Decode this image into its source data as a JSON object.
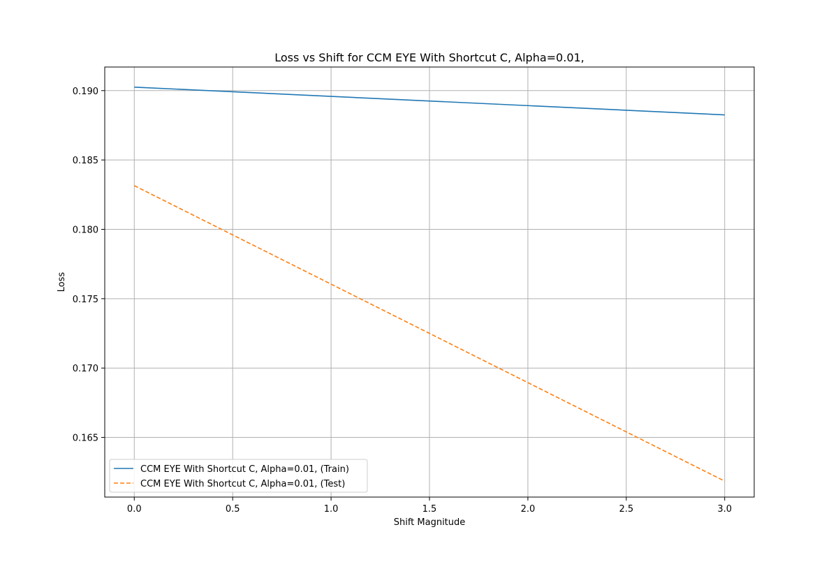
{
  "chart_data": {
    "type": "line",
    "title": "Loss vs Shift for CCM EYE With Shortcut C, Alpha=0.01,",
    "xlabel": "Shift Magnitude",
    "ylabel": "Loss",
    "xlim": [
      -0.15,
      3.15
    ],
    "ylim": [
      0.1607,
      0.1917
    ],
    "xticks": [
      0.0,
      0.5,
      1.0,
      1.5,
      2.0,
      2.5,
      3.0
    ],
    "xtick_labels": [
      "0.0",
      "0.5",
      "1.0",
      "1.5",
      "2.0",
      "2.5",
      "3.0"
    ],
    "yticks": [
      0.165,
      0.17,
      0.175,
      0.18,
      0.185,
      0.19
    ],
    "ytick_labels": [
      "0.165",
      "0.170",
      "0.175",
      "0.180",
      "0.185",
      "0.190"
    ],
    "grid": true,
    "legend_position": "lower-left",
    "series": [
      {
        "name": "CCM EYE With Shortcut C, Alpha=0.01, (Train)",
        "x": [
          0.0,
          3.0
        ],
        "y": [
          0.19025,
          0.18825
        ],
        "color": "#1f77b4",
        "linestyle": "solid"
      },
      {
        "name": "CCM EYE With Shortcut C, Alpha=0.01, (Test)",
        "x": [
          0.0,
          3.0
        ],
        "y": [
          0.18315,
          0.16185
        ],
        "color": "#ff7f0e",
        "linestyle": "dashed"
      }
    ]
  }
}
